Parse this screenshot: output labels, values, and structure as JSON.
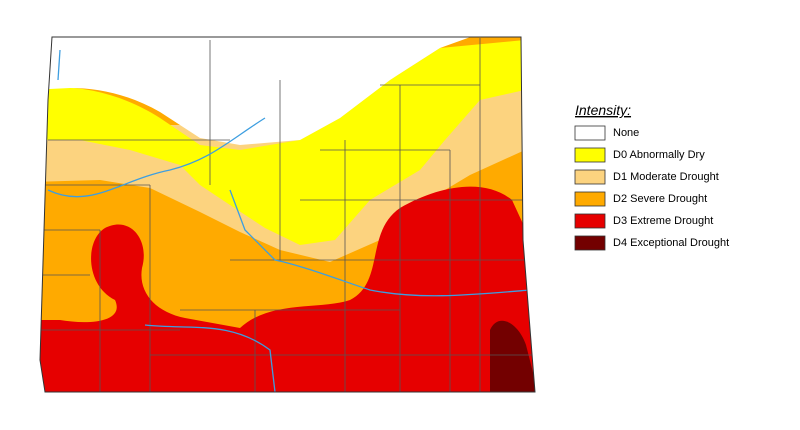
{
  "legend": {
    "title": "Intensity:",
    "items": [
      {
        "label": "None",
        "color": "#ffffff"
      },
      {
        "label": "D0 Abnormally Dry",
        "color": "#ffff00"
      },
      {
        "label": "D1 Moderate Drought",
        "color": "#fcd37f"
      },
      {
        "label": "D2 Severe Drought",
        "color": "#ffaa00"
      },
      {
        "label": "D3 Extreme Drought",
        "color": "#e60000"
      },
      {
        "label": "D4 Exceptional Drought",
        "color": "#730000"
      }
    ]
  }
}
